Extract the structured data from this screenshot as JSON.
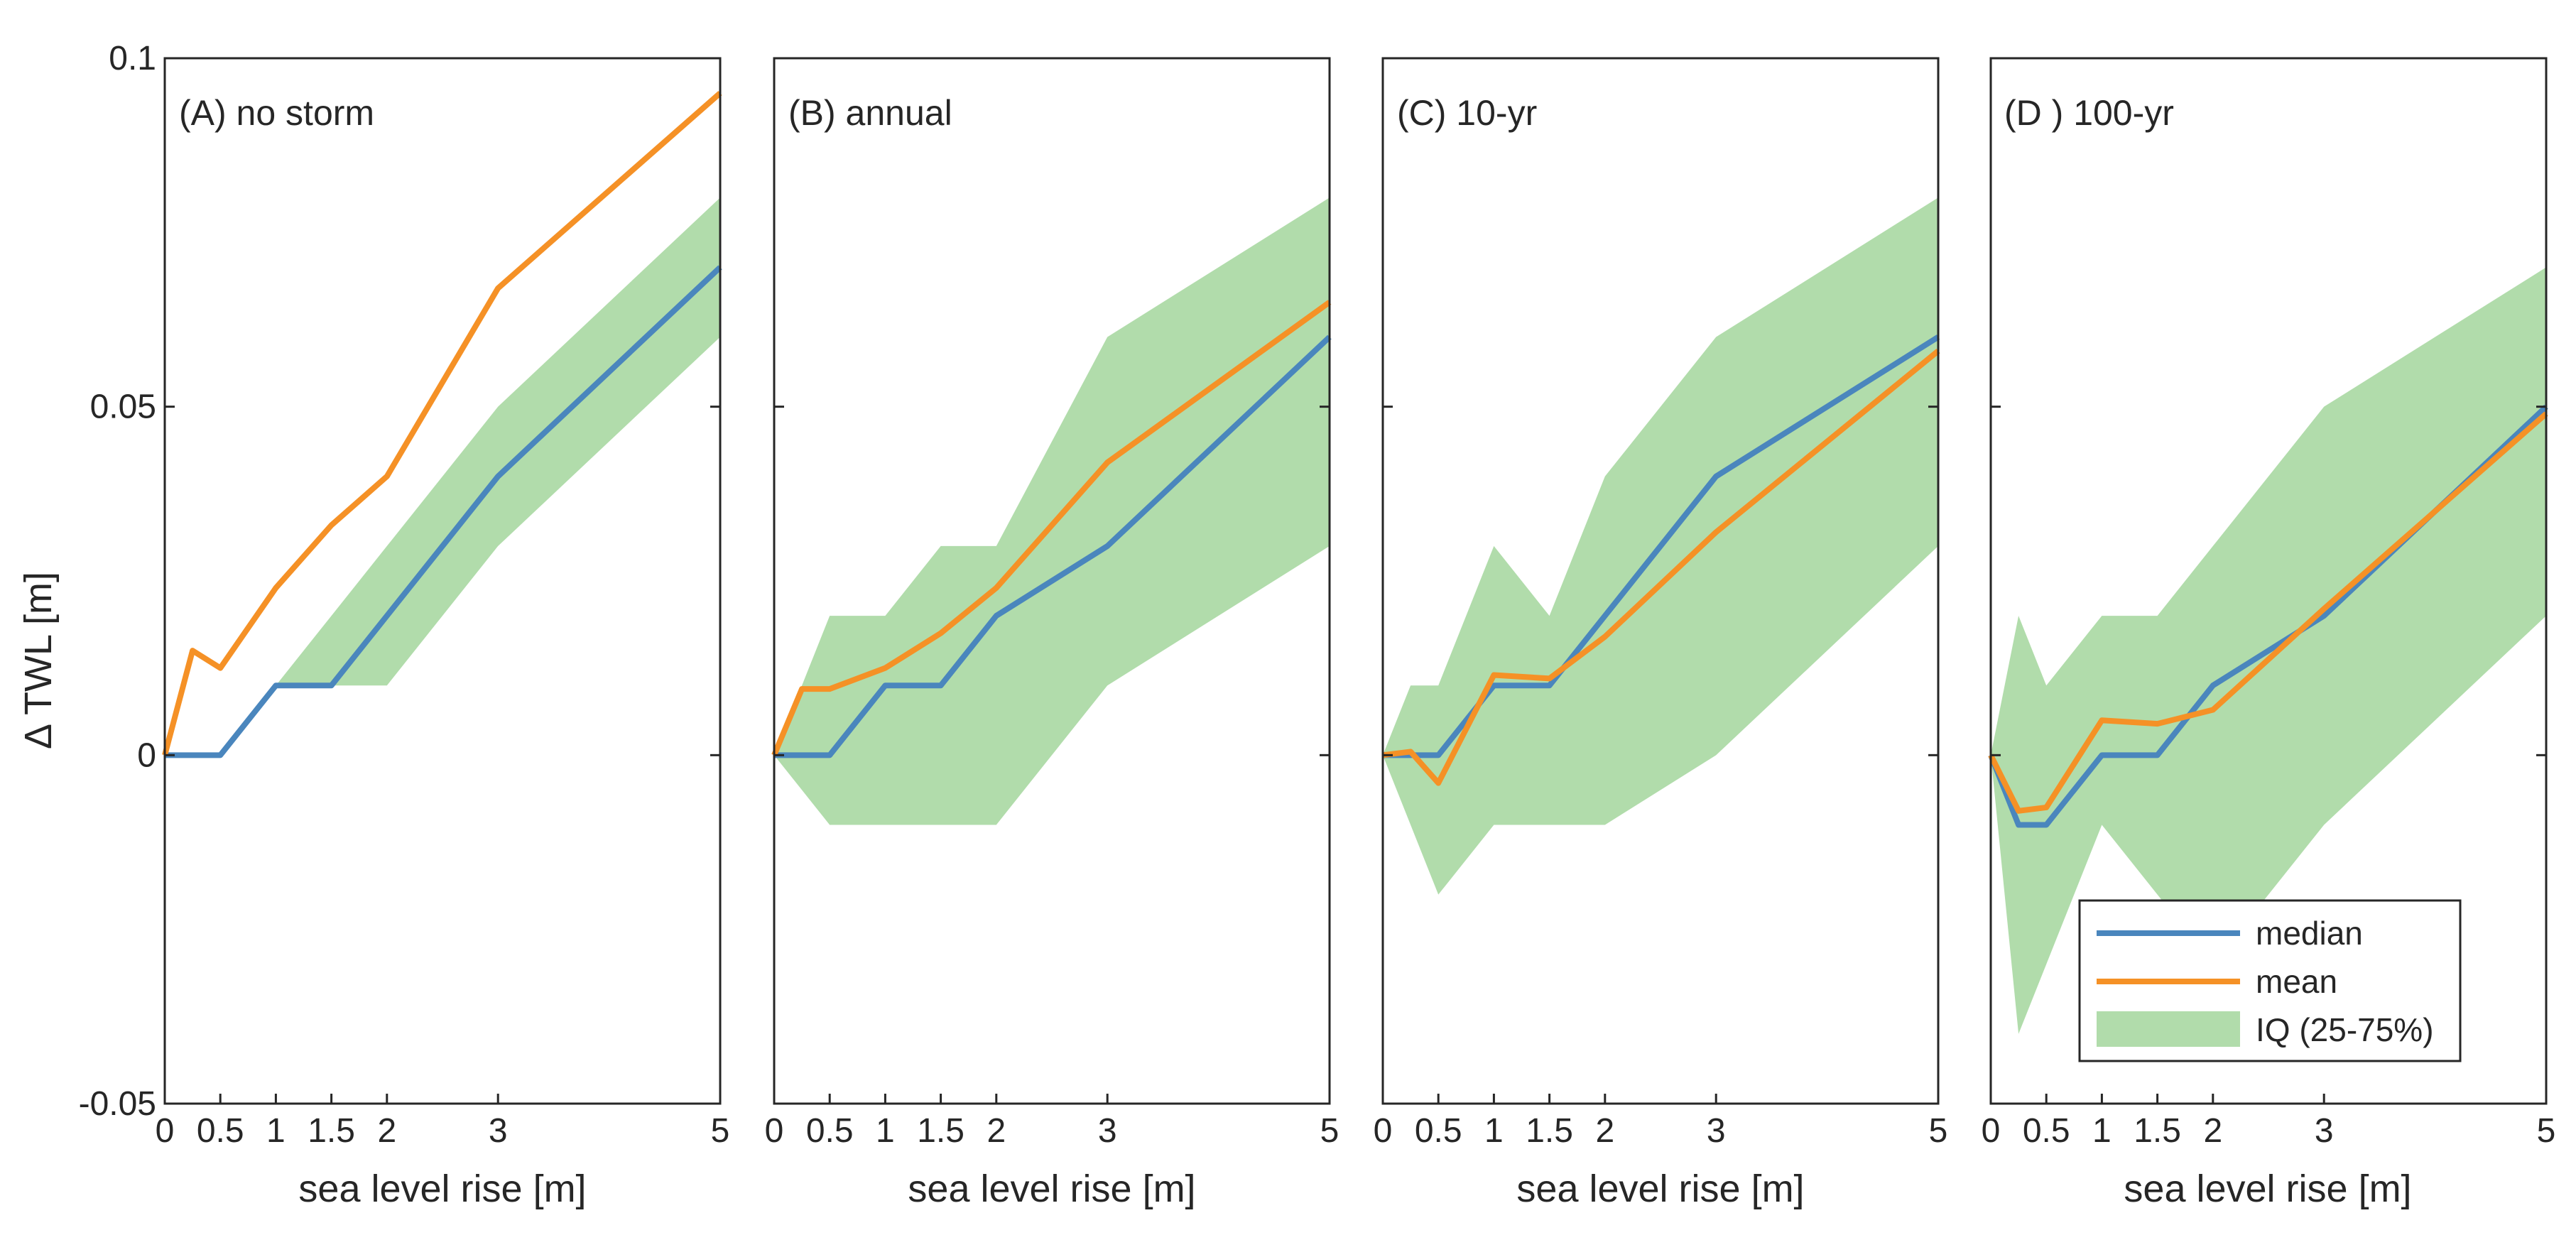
{
  "chart_data": [
    {
      "type": "line",
      "title": "(A) no storm",
      "xlabel": "sea level rise [m]",
      "ylabel": "Δ TWL  [m]",
      "xlim": [
        0,
        5
      ],
      "ylim": [
        -0.05,
        0.1
      ],
      "xticks": [
        "0",
        "0.5",
        "1",
        "1.5",
        "2",
        "3",
        "5"
      ],
      "yticks": [
        "-0.05",
        "0",
        "0.05",
        "0.1"
      ],
      "iq_band": {
        "x": [
          0,
          0.25,
          0.5,
          1,
          1.5,
          2,
          3,
          5
        ],
        "low": [
          0,
          0,
          0.01,
          0.01,
          0.01,
          0.01,
          0.03,
          0.06
        ],
        "high": [
          0,
          0,
          0.01,
          0.01,
          0.02,
          0.03,
          0.05,
          0.08
        ]
      },
      "series": [
        {
          "name": "median",
          "x": [
            0,
            0.25,
            0.5,
            1,
            1.5,
            2,
            3,
            5
          ],
          "values": [
            0,
            0,
            0,
            0.01,
            0.01,
            0.02,
            0.04,
            0.07
          ]
        },
        {
          "name": "mean",
          "x": [
            0,
            0.25,
            0.5,
            1,
            1.5,
            2,
            3,
            5
          ],
          "values": [
            0,
            0.015,
            0.0125,
            0.024,
            0.033,
            0.04,
            0.067,
            0.095
          ]
        }
      ]
    },
    {
      "type": "line",
      "title": "(B) annual",
      "xlabel": "sea level rise [m]",
      "xlim": [
        0,
        5
      ],
      "ylim": [
        -0.05,
        0.1
      ],
      "xticks": [
        "0",
        "0.5",
        "1",
        "1.5",
        "2",
        "3",
        "5"
      ],
      "iq_band": {
        "x": [
          0,
          0.25,
          0.5,
          1,
          1.5,
          2,
          3,
          5
        ],
        "low": [
          0,
          -0.005,
          -0.01,
          -0.01,
          -0.01,
          -0.01,
          0.01,
          0.03
        ],
        "high": [
          0,
          0.01,
          0.02,
          0.02,
          0.03,
          0.03,
          0.06,
          0.08
        ]
      },
      "series": [
        {
          "name": "median",
          "x": [
            0,
            0.25,
            0.5,
            1,
            1.5,
            2,
            3,
            5
          ],
          "values": [
            0,
            0,
            0,
            0.01,
            0.01,
            0.02,
            0.03,
            0.06
          ]
        },
        {
          "name": "mean",
          "x": [
            0,
            0.25,
            0.5,
            1,
            1.5,
            2,
            3,
            5
          ],
          "values": [
            0,
            0.0095,
            0.0095,
            0.0125,
            0.0175,
            0.024,
            0.042,
            0.065
          ]
        }
      ]
    },
    {
      "type": "line",
      "title": "(C) 10-yr",
      "xlabel": "sea level rise [m]",
      "xlim": [
        0,
        5
      ],
      "ylim": [
        -0.05,
        0.1
      ],
      "xticks": [
        "0",
        "0.5",
        "1",
        "1.5",
        "2",
        "3",
        "5"
      ],
      "iq_band": {
        "x": [
          0,
          0.25,
          0.5,
          1,
          1.5,
          2,
          3,
          5
        ],
        "low": [
          0,
          -0.01,
          -0.02,
          -0.01,
          -0.01,
          -0.01,
          0,
          0.03
        ],
        "high": [
          0,
          0.01,
          0.01,
          0.03,
          0.02,
          0.04,
          0.06,
          0.08
        ]
      },
      "series": [
        {
          "name": "median",
          "x": [
            0,
            0.25,
            0.5,
            1,
            1.5,
            2,
            3,
            5
          ],
          "values": [
            0,
            0,
            0,
            0.01,
            0.01,
            0.02,
            0.04,
            0.06
          ]
        },
        {
          "name": "mean",
          "x": [
            0,
            0.25,
            0.5,
            1,
            1.5,
            2,
            3,
            5
          ],
          "values": [
            0,
            0.0005,
            -0.004,
            0.0115,
            0.011,
            0.017,
            0.032,
            0.058
          ]
        }
      ]
    },
    {
      "type": "line",
      "title": "(D ) 100-yr",
      "xlabel": "sea level rise [m]",
      "xlim": [
        0,
        5
      ],
      "ylim": [
        -0.05,
        0.1
      ],
      "xticks": [
        "0",
        "0.5",
        "1",
        "1.5",
        "2",
        "3",
        "5"
      ],
      "iq_band": {
        "x": [
          0,
          0.25,
          0.5,
          1,
          1.5,
          2,
          3,
          5
        ],
        "low": [
          0,
          -0.04,
          -0.03,
          -0.01,
          -0.02,
          -0.03,
          -0.01,
          0.02
        ],
        "high": [
          0,
          0.02,
          0.01,
          0.02,
          0.02,
          0.03,
          0.05,
          0.07
        ]
      },
      "series": [
        {
          "name": "median",
          "x": [
            0,
            0.25,
            0.5,
            1,
            1.5,
            2,
            3,
            5
          ],
          "values": [
            0,
            -0.01,
            -0.01,
            0,
            0,
            0.01,
            0.02,
            0.05
          ]
        },
        {
          "name": "mean",
          "x": [
            0,
            0.25,
            0.5,
            1,
            1.5,
            2,
            3,
            5
          ],
          "values": [
            0,
            -0.008,
            -0.0075,
            0.005,
            0.0045,
            0.0065,
            0.021,
            0.049
          ]
        }
      ],
      "legend": {
        "placement": "bottom-right",
        "entries": [
          {
            "label": "median",
            "kind": "line",
            "color": "#4a86bd"
          },
          {
            "label": "mean",
            "kind": "line",
            "color": "#f59126"
          },
          {
            "label": "IQ (25-75%)",
            "kind": "patch",
            "color": "#b1dcab"
          }
        ]
      }
    }
  ],
  "colors": {
    "median": "#4a86bd",
    "mean": "#f59126",
    "iq": "#b1dcab",
    "axis": "#262626"
  }
}
